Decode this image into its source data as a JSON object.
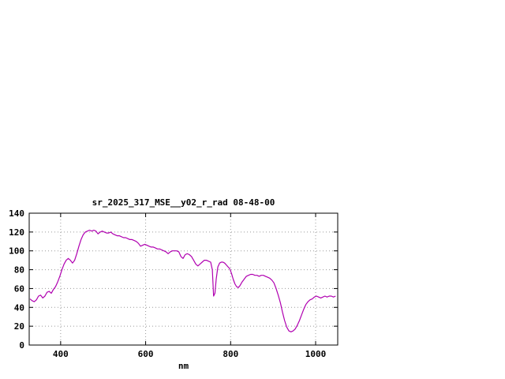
{
  "chart_data": {
    "type": "line",
    "title": "sr_2025_317_MSE__y02_r_rad 08-48-00",
    "xlabel": "nm",
    "ylabel": "",
    "xlim": [
      326,
      1052
    ],
    "ylim": [
      0,
      140
    ],
    "xticks": [
      400,
      600,
      800,
      1000
    ],
    "yticks": [
      0,
      20,
      40,
      60,
      80,
      100,
      120,
      140
    ],
    "grid": true,
    "legend": "none",
    "colors": {
      "line": "#b000b0",
      "grid": "#9a9a9a",
      "frame": "#000000",
      "background": "#ffffff"
    },
    "series": [
      {
        "points": [
          [
            328,
            49
          ],
          [
            333,
            47
          ],
          [
            338,
            46
          ],
          [
            343,
            48
          ],
          [
            348,
            52
          ],
          [
            353,
            53
          ],
          [
            358,
            50
          ],
          [
            363,
            52
          ],
          [
            368,
            56
          ],
          [
            373,
            57
          ],
          [
            378,
            55
          ],
          [
            383,
            59
          ],
          [
            388,
            62
          ],
          [
            393,
            67
          ],
          [
            398,
            73
          ],
          [
            403,
            80
          ],
          [
            408,
            86
          ],
          [
            413,
            90
          ],
          [
            418,
            92
          ],
          [
            423,
            90
          ],
          [
            428,
            87
          ],
          [
            433,
            90
          ],
          [
            438,
            97
          ],
          [
            443,
            105
          ],
          [
            448,
            112
          ],
          [
            453,
            117
          ],
          [
            458,
            120
          ],
          [
            463,
            121
          ],
          [
            468,
            122
          ],
          [
            473,
            121
          ],
          [
            478,
            122
          ],
          [
            483,
            121
          ],
          [
            488,
            118
          ],
          [
            493,
            120
          ],
          [
            498,
            121
          ],
          [
            503,
            120
          ],
          [
            508,
            119
          ],
          [
            513,
            119
          ],
          [
            518,
            120
          ],
          [
            523,
            118
          ],
          [
            528,
            117
          ],
          [
            533,
            116
          ],
          [
            538,
            116
          ],
          [
            543,
            115
          ],
          [
            548,
            114
          ],
          [
            553,
            114
          ],
          [
            558,
            113
          ],
          [
            563,
            112
          ],
          [
            568,
            112
          ],
          [
            573,
            111
          ],
          [
            578,
            110
          ],
          [
            583,
            108
          ],
          [
            588,
            105
          ],
          [
            593,
            106
          ],
          [
            598,
            107
          ],
          [
            603,
            106
          ],
          [
            608,
            105
          ],
          [
            613,
            104
          ],
          [
            618,
            104
          ],
          [
            623,
            103
          ],
          [
            628,
            102
          ],
          [
            633,
            102
          ],
          [
            638,
            101
          ],
          [
            643,
            100
          ],
          [
            648,
            99
          ],
          [
            653,
            97
          ],
          [
            658,
            99
          ],
          [
            663,
            100
          ],
          [
            668,
            100
          ],
          [
            673,
            100
          ],
          [
            678,
            99
          ],
          [
            683,
            94
          ],
          [
            688,
            92
          ],
          [
            693,
            96
          ],
          [
            698,
            97
          ],
          [
            703,
            96
          ],
          [
            708,
            94
          ],
          [
            713,
            90
          ],
          [
            718,
            86
          ],
          [
            723,
            84
          ],
          [
            728,
            86
          ],
          [
            733,
            88
          ],
          [
            738,
            90
          ],
          [
            743,
            90
          ],
          [
            748,
            89
          ],
          [
            753,
            88
          ],
          [
            757,
            80
          ],
          [
            760,
            52
          ],
          [
            763,
            55
          ],
          [
            766,
            70
          ],
          [
            770,
            83
          ],
          [
            774,
            87
          ],
          [
            778,
            88
          ],
          [
            782,
            88
          ],
          [
            786,
            87
          ],
          [
            790,
            85
          ],
          [
            794,
            83
          ],
          [
            798,
            81
          ],
          [
            802,
            76
          ],
          [
            806,
            70
          ],
          [
            810,
            65
          ],
          [
            814,
            62
          ],
          [
            818,
            61
          ],
          [
            822,
            63
          ],
          [
            827,
            67
          ],
          [
            832,
            70
          ],
          [
            837,
            73
          ],
          [
            842,
            74
          ],
          [
            847,
            75
          ],
          [
            852,
            75
          ],
          [
            857,
            74
          ],
          [
            862,
            74
          ],
          [
            867,
            73
          ],
          [
            872,
            74
          ],
          [
            877,
            74
          ],
          [
            882,
            73
          ],
          [
            887,
            72
          ],
          [
            892,
            71
          ],
          [
            897,
            69
          ],
          [
            902,
            66
          ],
          [
            907,
            60
          ],
          [
            912,
            53
          ],
          [
            917,
            45
          ],
          [
            922,
            35
          ],
          [
            927,
            26
          ],
          [
            932,
            19
          ],
          [
            937,
            15
          ],
          [
            942,
            14
          ],
          [
            947,
            15
          ],
          [
            952,
            17
          ],
          [
            957,
            21
          ],
          [
            962,
            26
          ],
          [
            967,
            32
          ],
          [
            972,
            38
          ],
          [
            977,
            43
          ],
          [
            982,
            46
          ],
          [
            987,
            48
          ],
          [
            992,
            49
          ],
          [
            997,
            51
          ],
          [
            1002,
            52
          ],
          [
            1007,
            51
          ],
          [
            1012,
            50
          ],
          [
            1017,
            51
          ],
          [
            1022,
            52
          ],
          [
            1027,
            51
          ],
          [
            1032,
            52
          ],
          [
            1037,
            52
          ],
          [
            1042,
            51
          ],
          [
            1047,
            52
          ]
        ]
      }
    ]
  }
}
